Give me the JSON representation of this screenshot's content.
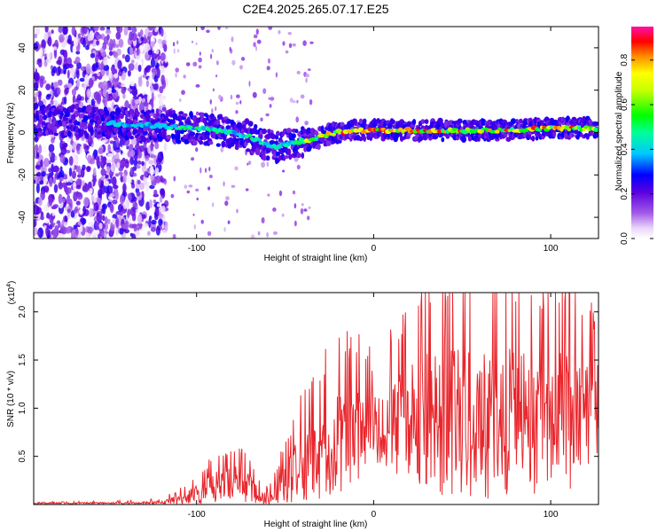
{
  "chart_data": [
    {
      "type": "heatmap",
      "title": "C2E4.2025.265.07.17.E25",
      "xlabel": "Height of straight line (km)",
      "ylabel": "Frequency (Hz)",
      "xlim": [
        -192,
        127
      ],
      "ylim": [
        -50,
        50
      ],
      "xticks": [
        -100,
        0,
        100
      ],
      "xtick_labels": [
        "-100",
        "0",
        "100"
      ],
      "yticks": [
        -40,
        -20,
        0,
        20,
        40
      ],
      "ytick_labels": [
        "-40",
        "-20",
        "0",
        "20",
        "40"
      ],
      "colorbar": {
        "label": "Normalized spectral amplitude",
        "range": [
          0.0,
          0.95
        ],
        "ticks": [
          0.0,
          0.2,
          0.4,
          0.6,
          0.8
        ],
        "tick_labels": [
          "0.0",
          "0.2",
          "0.4",
          "0.6",
          "0.8"
        ]
      },
      "ridge_center_hz": {
        "x": [
          -190,
          -160,
          -140,
          -120,
          -100,
          -80,
          -70,
          -60,
          -55,
          -48,
          -40,
          -30,
          -20,
          -10,
          0,
          20,
          40,
          60,
          80,
          100,
          127
        ],
        "y": [
          6,
          5,
          4,
          3,
          2,
          0,
          -2,
          -6,
          -7,
          -5,
          -4,
          -2,
          0,
          1,
          1,
          1,
          1,
          1,
          1,
          2,
          2
        ]
      }
    },
    {
      "type": "line",
      "xlabel": "Height of straight line (km)",
      "ylabel": "SNR (10 * v/v)",
      "y_multiplier_label": "(x10",
      "y_multiplier_exp": "4",
      "xlim": [
        -192,
        127
      ],
      "ylim": [
        0,
        2.2
      ],
      "xticks": [
        -100,
        0,
        100
      ],
      "xtick_labels": [
        "-100",
        "0",
        "100"
      ],
      "yticks": [
        0.5,
        1.0,
        1.5,
        2.0
      ],
      "ytick_labels": [
        "0.5",
        "1.0",
        "1.5",
        "2.0"
      ],
      "series": [
        {
          "name": "SNR",
          "color": "#e8262c",
          "envelope": {
            "x": [
              -192,
              -150,
              -120,
              -110,
              -100,
              -90,
              -80,
              -72,
              -65,
              -60,
              -55,
              -48,
              -40,
              -30,
              -20,
              -10,
              0,
              10,
              20,
              30,
              40,
              50,
              60,
              70,
              80,
              90,
              100,
              110,
              127
            ],
            "base": [
              0.01,
              0.01,
              0.02,
              0.05,
              0.1,
              0.18,
              0.22,
              0.2,
              0.1,
              0.05,
              0.1,
              0.25,
              0.4,
              0.55,
              0.65,
              0.75,
              0.8,
              0.85,
              0.9,
              0.9,
              0.9,
              0.9,
              0.9,
              0.9,
              0.9,
              0.88,
              0.9,
              0.9,
              0.95
            ],
            "amp": [
              0.01,
              0.02,
              0.03,
              0.08,
              0.15,
              0.25,
              0.3,
              0.28,
              0.12,
              0.1,
              0.2,
              0.4,
              0.55,
              0.7,
              0.8,
              0.75,
              0.55,
              0.7,
              0.9,
              1.05,
              1.15,
              1.2,
              1.15,
              1.2,
              1.1,
              1.1,
              1.1,
              1.05,
              0.8
            ]
          }
        }
      ]
    }
  ]
}
